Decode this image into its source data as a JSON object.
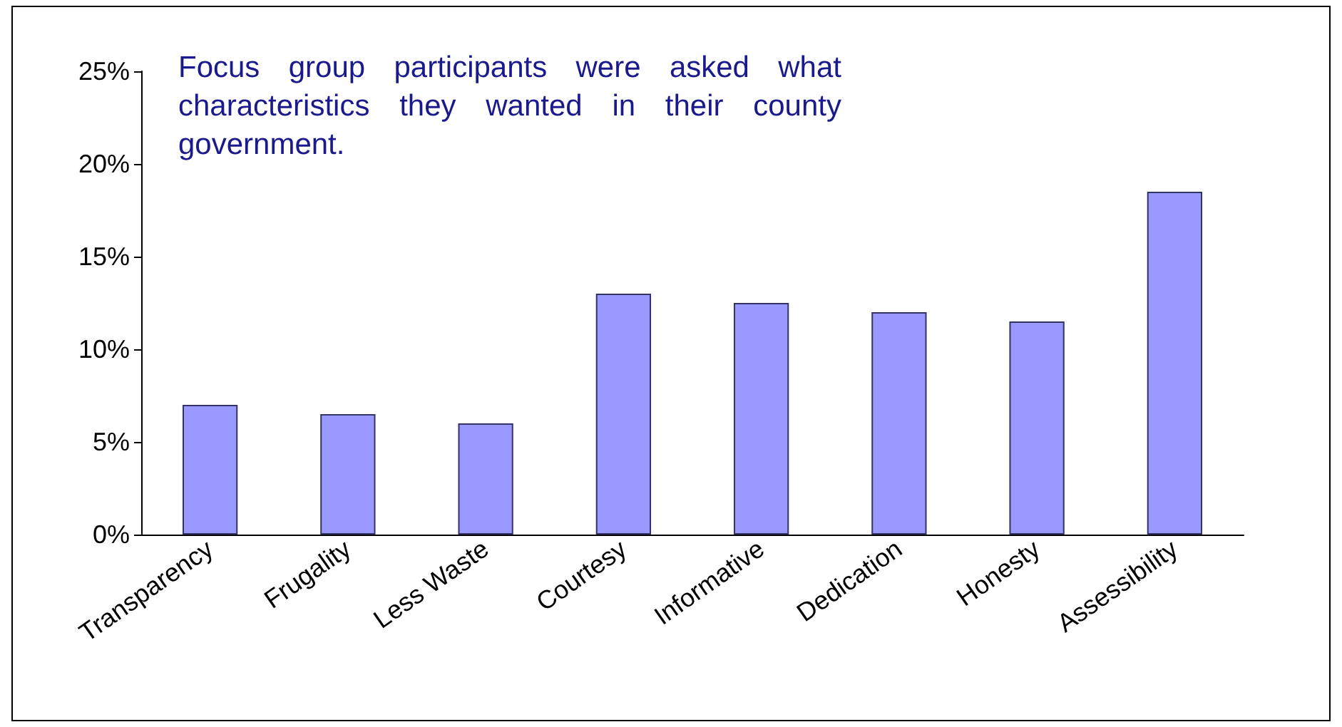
{
  "chart_data": {
    "type": "bar",
    "categories": [
      "Transparency",
      "Frugality",
      "Less Waste",
      "Courtesy",
      "Informative",
      "Dedication",
      "Honesty",
      "Assessibility"
    ],
    "values": [
      7,
      6.5,
      6,
      13,
      12.5,
      12,
      11.5,
      18.5
    ],
    "color": "#9999ff",
    "ylim": [
      0,
      25
    ],
    "yticks": [
      {
        "value": 0,
        "label": "0%"
      },
      {
        "value": 5,
        "label": "5%"
      },
      {
        "value": 10,
        "label": "10%"
      },
      {
        "value": 15,
        "label": "15%"
      },
      {
        "value": 20,
        "label": "20%"
      },
      {
        "value": 25,
        "label": "25%"
      }
    ],
    "grid": false,
    "annotations": [
      "Focus group participants were asked what characteristics they wanted in their county government."
    ]
  }
}
